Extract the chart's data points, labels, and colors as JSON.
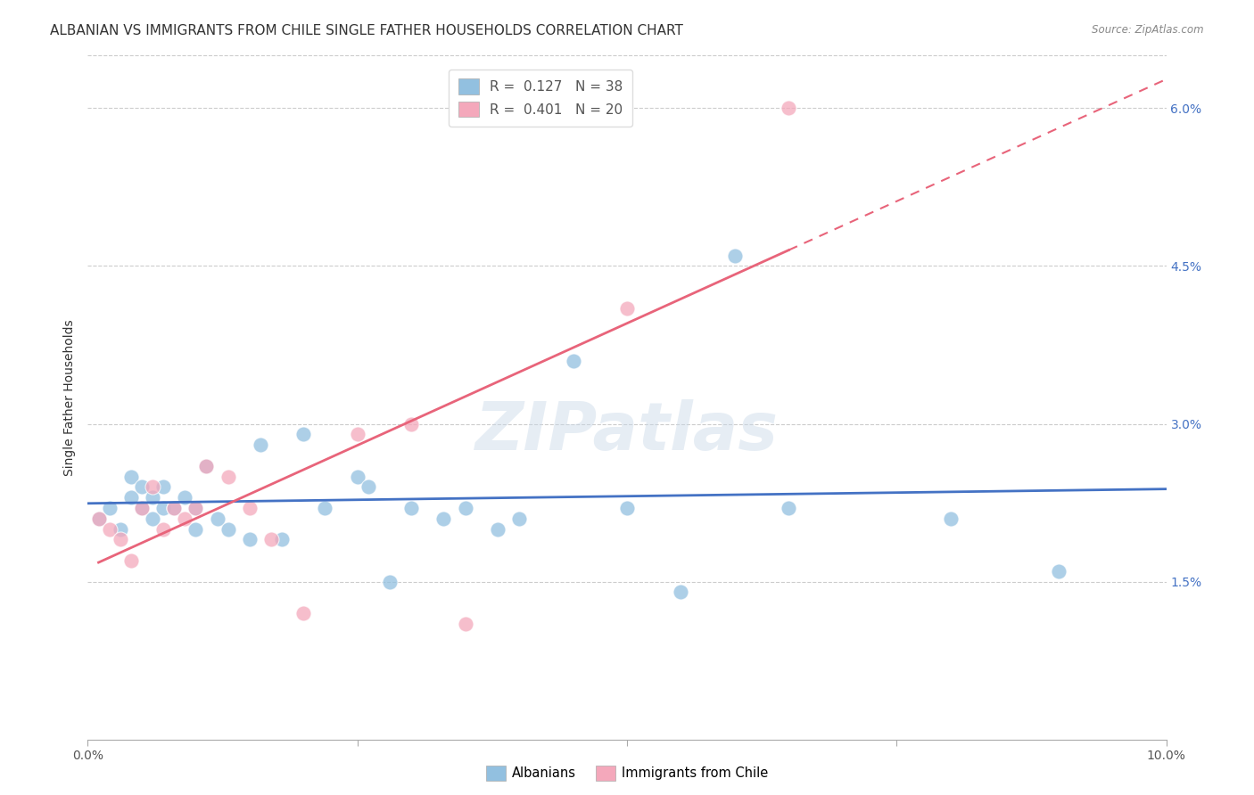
{
  "title": "ALBANIAN VS IMMIGRANTS FROM CHILE SINGLE FATHER HOUSEHOLDS CORRELATION CHART",
  "source": "Source: ZipAtlas.com",
  "ylabel": "Single Father Households",
  "xlim": [
    0.0,
    0.1
  ],
  "ylim": [
    0.0,
    0.065
  ],
  "yticks": [
    0.015,
    0.03,
    0.045,
    0.06
  ],
  "ytick_labels": [
    "1.5%",
    "3.0%",
    "4.5%",
    "6.0%"
  ],
  "xticks": [
    0.0,
    0.025,
    0.05,
    0.075,
    0.1
  ],
  "xtick_labels": [
    "0.0%",
    "",
    "",
    "",
    "10.0%"
  ],
  "albanians_x": [
    0.001,
    0.002,
    0.003,
    0.004,
    0.004,
    0.005,
    0.005,
    0.006,
    0.006,
    0.007,
    0.007,
    0.008,
    0.009,
    0.01,
    0.01,
    0.011,
    0.012,
    0.013,
    0.015,
    0.016,
    0.018,
    0.02,
    0.022,
    0.025,
    0.026,
    0.028,
    0.03,
    0.033,
    0.035,
    0.038,
    0.04,
    0.045,
    0.05,
    0.055,
    0.06,
    0.065,
    0.08,
    0.09
  ],
  "albanians_y": [
    0.021,
    0.022,
    0.02,
    0.023,
    0.025,
    0.022,
    0.024,
    0.021,
    0.023,
    0.022,
    0.024,
    0.022,
    0.023,
    0.02,
    0.022,
    0.026,
    0.021,
    0.02,
    0.019,
    0.028,
    0.019,
    0.029,
    0.022,
    0.025,
    0.024,
    0.015,
    0.022,
    0.021,
    0.022,
    0.02,
    0.021,
    0.036,
    0.022,
    0.014,
    0.046,
    0.022,
    0.021,
    0.016
  ],
  "chile_x": [
    0.001,
    0.002,
    0.003,
    0.004,
    0.005,
    0.006,
    0.007,
    0.008,
    0.009,
    0.01,
    0.011,
    0.013,
    0.015,
    0.017,
    0.02,
    0.025,
    0.03,
    0.035,
    0.05,
    0.065
  ],
  "chile_y": [
    0.021,
    0.02,
    0.019,
    0.017,
    0.022,
    0.024,
    0.02,
    0.022,
    0.021,
    0.022,
    0.026,
    0.025,
    0.022,
    0.019,
    0.012,
    0.029,
    0.03,
    0.011,
    0.041,
    0.06
  ],
  "albanian_R": 0.127,
  "albanian_N": 38,
  "chile_R": 0.401,
  "chile_N": 20,
  "blue_color": "#92c0e0",
  "pink_color": "#f4a8bb",
  "blue_line_color": "#4472c4",
  "pink_line_color": "#e8647a",
  "background_color": "#ffffff",
  "watermark": "ZIPatlas",
  "title_fontsize": 11,
  "axis_label_fontsize": 10,
  "tick_fontsize": 10
}
